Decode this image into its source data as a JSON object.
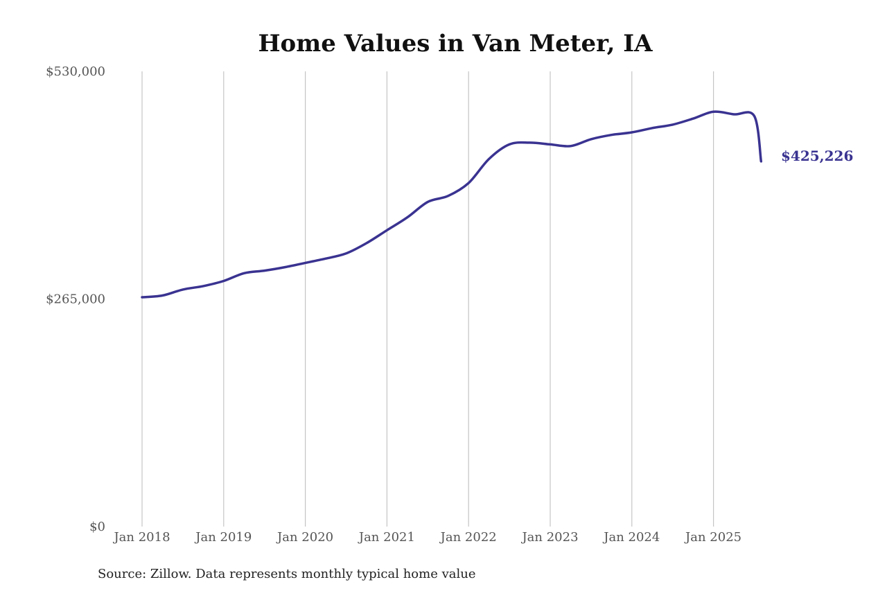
{
  "chart_data": {
    "type": "line",
    "title": "Home Values in Van Meter, IA",
    "source": "Source: Zillow. Data represents monthly typical home value",
    "y_ticks": [
      {
        "value": 0,
        "label": "$0"
      },
      {
        "value": 265000,
        "label": "$265,000"
      },
      {
        "value": 530000,
        "label": "$530,000"
      }
    ],
    "x_ticks": [
      {
        "value": "2018-01",
        "label": "Jan 2018"
      },
      {
        "value": "2019-01",
        "label": "Jan 2019"
      },
      {
        "value": "2020-01",
        "label": "Jan 2020"
      },
      {
        "value": "2021-01",
        "label": "Jan 2021"
      },
      {
        "value": "2022-01",
        "label": "Jan 2022"
      },
      {
        "value": "2023-01",
        "label": "Jan 2023"
      },
      {
        "value": "2024-01",
        "label": "Jan 2024"
      },
      {
        "value": "2025-01",
        "label": "Jan 2025"
      }
    ],
    "ylim": [
      0,
      530000
    ],
    "xlim": [
      "2018-01",
      "2025-12"
    ],
    "grid": "vertical",
    "line_color": "#3a3391",
    "end_label": "$425,226",
    "series": [
      {
        "x": [
          "2018-01",
          "2018-04",
          "2018-07",
          "2018-10",
          "2019-01",
          "2019-04",
          "2019-07",
          "2019-10",
          "2020-01",
          "2020-04",
          "2020-07",
          "2020-10",
          "2021-01",
          "2021-04",
          "2021-07",
          "2021-10",
          "2022-01",
          "2022-04",
          "2022-07",
          "2022-10",
          "2023-01",
          "2023-04",
          "2023-07",
          "2023-10",
          "2024-01",
          "2024-04",
          "2024-07",
          "2024-10",
          "2025-01",
          "2025-04",
          "2025-07",
          "2025-08"
        ],
        "values": [
          267000,
          269000,
          276000,
          280000,
          286000,
          295000,
          298000,
          302000,
          307000,
          312000,
          318000,
          330000,
          345000,
          360000,
          378000,
          385000,
          400000,
          428000,
          445000,
          447000,
          445000,
          443000,
          451000,
          456000,
          459000,
          464000,
          468000,
          475000,
          483000,
          480000,
          478000,
          425226
        ]
      }
    ]
  }
}
